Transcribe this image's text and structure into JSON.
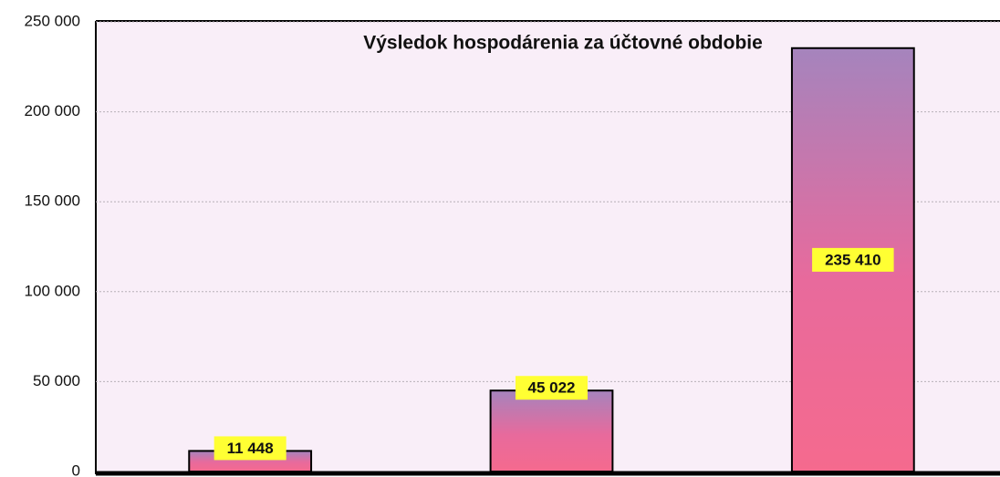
{
  "chart_data": {
    "type": "bar",
    "title": "Výsledok hospodárenia za účtovné obdobie",
    "categories": [
      null,
      null,
      null
    ],
    "values": [
      11448,
      45022,
      235410
    ],
    "value_labels": [
      "11 448",
      "45 022",
      "235 410"
    ],
    "ylim": [
      0,
      250000
    ],
    "yticks": [
      {
        "value": 0,
        "label": "0"
      },
      {
        "value": 50000,
        "label": "50 000"
      },
      {
        "value": 100000,
        "label": "100 000"
      },
      {
        "value": 150000,
        "label": "150 000"
      },
      {
        "value": 200000,
        "label": "200 000"
      },
      {
        "value": 250000,
        "label": "250 000"
      }
    ],
    "grid": true
  }
}
